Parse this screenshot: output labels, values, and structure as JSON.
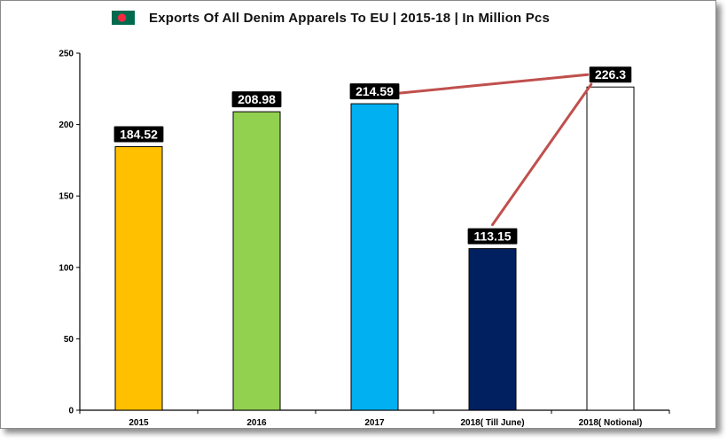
{
  "chart_data": {
    "type": "bar",
    "title": "Exports Of All Denim Apparels To EU | 2015-18 | In Million Pcs",
    "categories": [
      "2015",
      "2016",
      "2017",
      "2018( Till June)",
      "2018( Notional)"
    ],
    "values": [
      184.52,
      208.98,
      214.59,
      113.15,
      226.3
    ],
    "value_labels": [
      "184.52",
      "208.98",
      "214.59",
      "113.15",
      "226.3"
    ],
    "bar_colors": [
      "#ffc000",
      "#92d050",
      "#00b0f0",
      "#002060",
      "#ffffff"
    ],
    "yticks": [
      0,
      50,
      100,
      150,
      200,
      250
    ],
    "ylim": [
      0,
      250
    ],
    "grid": false,
    "legend": "none",
    "connectors": [
      {
        "from": 2,
        "to": 4,
        "color": "#c0504d"
      },
      {
        "from": 3,
        "to": 4,
        "color": "#c0504d"
      }
    ],
    "flag": {
      "field_color": "#006a4e",
      "disc_color": "#f42a41"
    }
  }
}
